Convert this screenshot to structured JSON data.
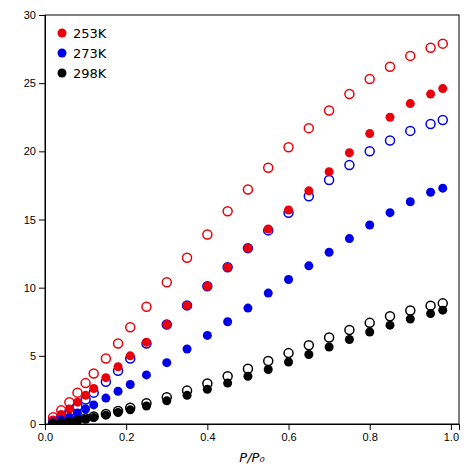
{
  "chart_data": {
    "type": "scatter",
    "xlabel": "P/P₀",
    "xlim": [
      0.0,
      1.02
    ],
    "ylim": [
      0,
      30
    ],
    "xticks": [
      {
        "value": 0.0,
        "label": "0.0"
      },
      0.2,
      0.4,
      0.6,
      0.8,
      {
        "value": 1.0,
        "label": "1.0"
      }
    ],
    "yticks": [
      0,
      5,
      10,
      15,
      20,
      25,
      30
    ],
    "grid": false,
    "legend": "upper left",
    "series": [
      {
        "name": "253K",
        "color": "#e8000a",
        "marker": "circle",
        "x": [
          0.02,
          0.04,
          0.06,
          0.08,
          0.1,
          0.12,
          0.15,
          0.18,
          0.21,
          0.25,
          0.3,
          0.35,
          0.4,
          0.45,
          0.5,
          0.55,
          0.6,
          0.65,
          0.7,
          0.75,
          0.8,
          0.85,
          0.9,
          0.95,
          0.98
        ],
        "values": [
          0.3,
          0.7,
          1.1,
          1.6,
          2.1,
          2.6,
          3.4,
          4.2,
          5.0,
          6.0,
          7.3,
          8.7,
          10.1,
          11.5,
          12.9,
          14.3,
          15.7,
          17.1,
          18.5,
          19.9,
          21.3,
          22.5,
          23.5,
          24.2,
          24.6
        ]
      },
      {
        "color": "#e8000a",
        "marker": "circle-open",
        "x": [
          0.02,
          0.04,
          0.06,
          0.08,
          0.1,
          0.12,
          0.15,
          0.18,
          0.21,
          0.25,
          0.3,
          0.35,
          0.4,
          0.45,
          0.5,
          0.55,
          0.6,
          0.65,
          0.7,
          0.75,
          0.8,
          0.85,
          0.9,
          0.95,
          0.98
        ],
        "values": [
          0.5,
          1.0,
          1.6,
          2.3,
          3.0,
          3.7,
          4.8,
          5.9,
          7.1,
          8.6,
          10.4,
          12.2,
          13.9,
          15.6,
          17.2,
          18.8,
          20.3,
          21.7,
          23.0,
          24.2,
          25.3,
          26.2,
          27.0,
          27.6,
          27.9
        ]
      },
      {
        "name": "273K",
        "color": "#0000e8",
        "marker": "circle",
        "x": [
          0.02,
          0.04,
          0.06,
          0.08,
          0.1,
          0.12,
          0.15,
          0.18,
          0.21,
          0.25,
          0.3,
          0.35,
          0.4,
          0.45,
          0.5,
          0.55,
          0.6,
          0.65,
          0.7,
          0.75,
          0.8,
          0.85,
          0.9,
          0.95,
          0.98
        ],
        "values": [
          0.1,
          0.3,
          0.5,
          0.8,
          1.1,
          1.4,
          1.9,
          2.4,
          2.9,
          3.6,
          4.5,
          5.5,
          6.5,
          7.5,
          8.5,
          9.6,
          10.6,
          11.6,
          12.6,
          13.6,
          14.6,
          15.5,
          16.3,
          17.0,
          17.3
        ]
      },
      {
        "color": "#0000e8",
        "marker": "circle-open",
        "x": [
          0.02,
          0.04,
          0.06,
          0.08,
          0.1,
          0.12,
          0.15,
          0.18,
          0.21,
          0.25,
          0.3,
          0.35,
          0.4,
          0.45,
          0.5,
          0.55,
          0.6,
          0.65,
          0.7,
          0.75,
          0.8,
          0.85,
          0.9,
          0.95,
          0.98
        ],
        "values": [
          0.2,
          0.5,
          0.9,
          1.3,
          1.8,
          2.3,
          3.1,
          3.9,
          4.8,
          5.9,
          7.3,
          8.7,
          10.1,
          11.5,
          12.9,
          14.2,
          15.5,
          16.7,
          17.9,
          19.0,
          20.0,
          20.8,
          21.5,
          22.0,
          22.3
        ]
      },
      {
        "name": "298K",
        "color": "#000000",
        "marker": "circle",
        "x": [
          0.02,
          0.04,
          0.06,
          0.08,
          0.1,
          0.12,
          0.15,
          0.18,
          0.21,
          0.25,
          0.3,
          0.35,
          0.4,
          0.45,
          0.5,
          0.55,
          0.6,
          0.65,
          0.7,
          0.75,
          0.8,
          0.85,
          0.9,
          0.95,
          0.98
        ],
        "values": [
          0.05,
          0.1,
          0.18,
          0.27,
          0.37,
          0.48,
          0.65,
          0.84,
          1.04,
          1.32,
          1.7,
          2.1,
          2.55,
          3.0,
          3.5,
          4.0,
          4.55,
          5.1,
          5.65,
          6.2,
          6.75,
          7.25,
          7.7,
          8.1,
          8.35
        ]
      },
      {
        "color": "#000000",
        "marker": "circle-open",
        "x": [
          0.02,
          0.04,
          0.06,
          0.08,
          0.1,
          0.12,
          0.15,
          0.18,
          0.21,
          0.25,
          0.3,
          0.35,
          0.4,
          0.45,
          0.5,
          0.55,
          0.6,
          0.65,
          0.7,
          0.75,
          0.8,
          0.85,
          0.9,
          0.95,
          0.98
        ],
        "values": [
          0.05,
          0.12,
          0.2,
          0.3,
          0.42,
          0.55,
          0.74,
          0.96,
          1.2,
          1.52,
          1.97,
          2.45,
          2.97,
          3.5,
          4.05,
          4.62,
          5.2,
          5.78,
          6.35,
          6.9,
          7.42,
          7.9,
          8.32,
          8.68,
          8.85
        ]
      }
    ]
  }
}
